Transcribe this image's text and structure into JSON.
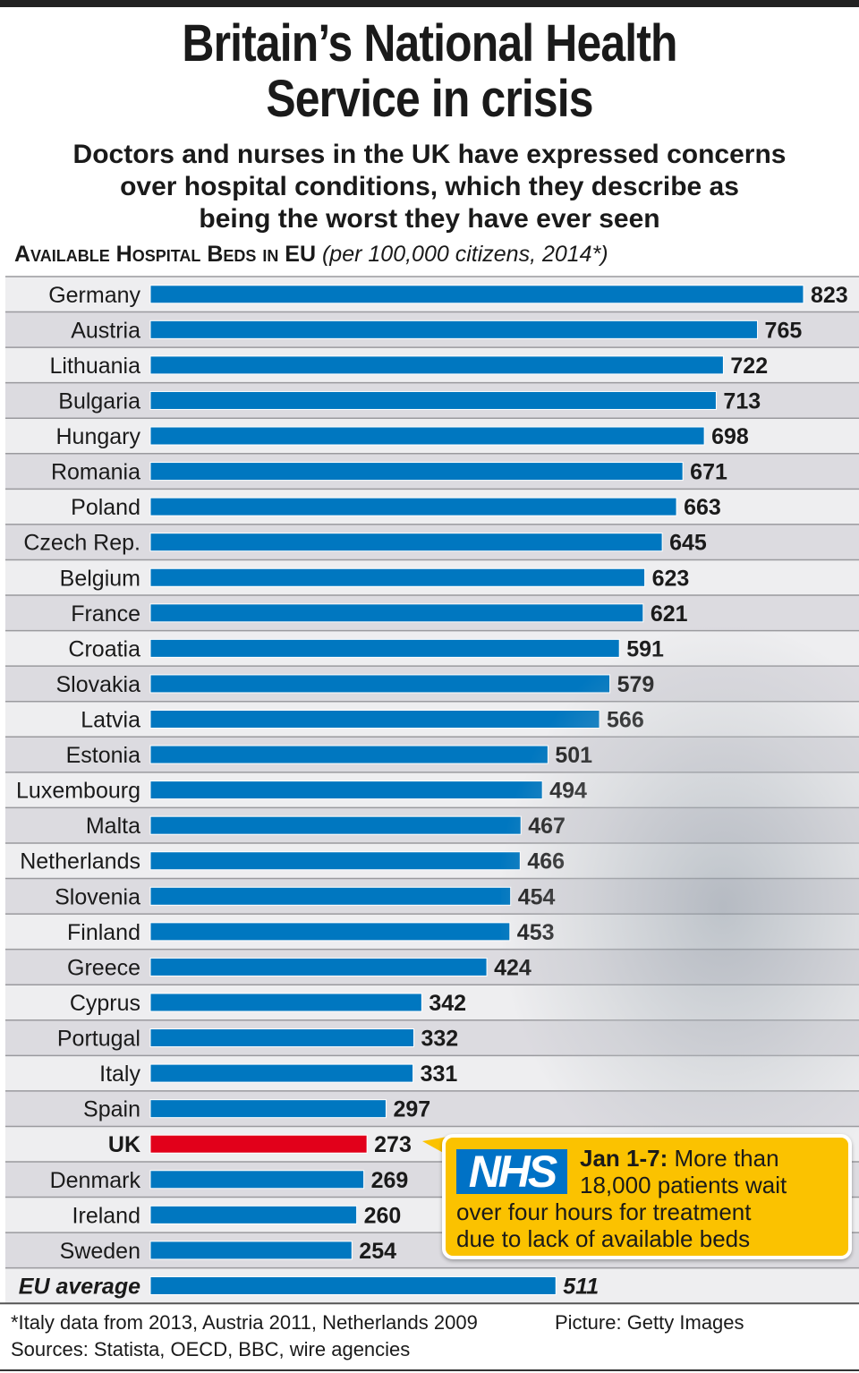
{
  "header": {
    "title_line1": "Britain’s National Health",
    "title_line2": "Service in crisis",
    "subtitle_line1": "Doctors and nurses in the UK have expressed concerns",
    "subtitle_line2": "over hospital conditions, which they describe as",
    "subtitle_line3": "being the worst they have ever seen"
  },
  "chart_data": {
    "type": "bar",
    "orientation": "horizontal",
    "title": "Available Hospital Beds in EU",
    "title_note": "(per 100,000 citizens, 2014*)",
    "categories": [
      "Germany",
      "Austria",
      "Lithuania",
      "Bulgaria",
      "Hungary",
      "Romania",
      "Poland",
      "Czech Rep.",
      "Belgium",
      "France",
      "Croatia",
      "Slovakia",
      "Latvia",
      "Estonia",
      "Luxembourg",
      "Malta",
      "Netherlands",
      "Slovenia",
      "Finland",
      "Greece",
      "Cyprus",
      "Portugal",
      "Italy",
      "Spain",
      "UK",
      "Denmark",
      "Ireland",
      "Sweden",
      "EU average"
    ],
    "values": [
      823,
      765,
      722,
      713,
      698,
      671,
      663,
      645,
      623,
      621,
      591,
      579,
      566,
      501,
      494,
      467,
      466,
      454,
      453,
      424,
      342,
      332,
      331,
      297,
      273,
      269,
      260,
      254,
      511
    ],
    "highlight": "UK",
    "average_label": "EU average",
    "xlim": [
      0,
      823
    ],
    "colors": {
      "bar": "#0077c0",
      "highlight": "#e2001a",
      "callout": "#fbc200",
      "nhs": "#0072c6"
    }
  },
  "callout": {
    "logo": "NHS",
    "date": "Jan 1-7:",
    "text_line1": "More than",
    "text_line2": "18,000 patients wait",
    "text_line3": "over four hours for treatment",
    "text_line4": "due to lack of available beds"
  },
  "footer": {
    "note": "*Italy data from 2013, Austria 2011, Netherlands 2009",
    "sources": "Sources: Statista, OECD, BBC, wire agencies",
    "picture": "Picture: Getty Images"
  }
}
